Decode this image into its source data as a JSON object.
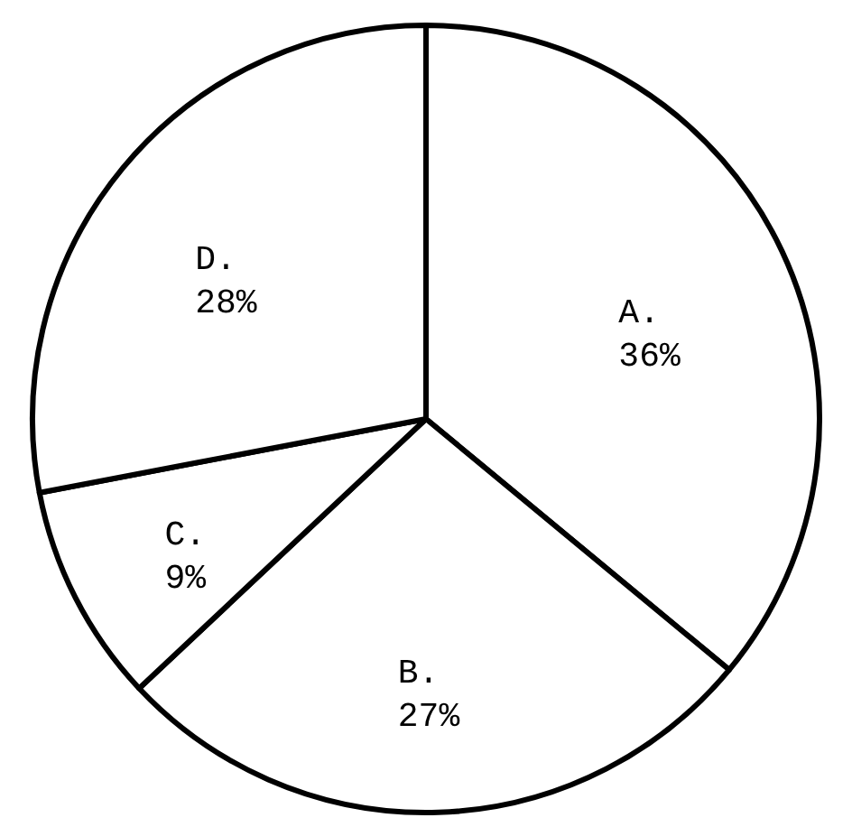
{
  "chart_data": {
    "type": "pie",
    "categories": [
      "A.",
      "B.",
      "C.",
      "D."
    ],
    "values": [
      36,
      27,
      9,
      28
    ],
    "value_labels": [
      "36%",
      "27%",
      "9%",
      "28%"
    ],
    "colors": [
      "#ffffff",
      "#ffffff",
      "#ffffff",
      "#ffffff"
    ]
  }
}
